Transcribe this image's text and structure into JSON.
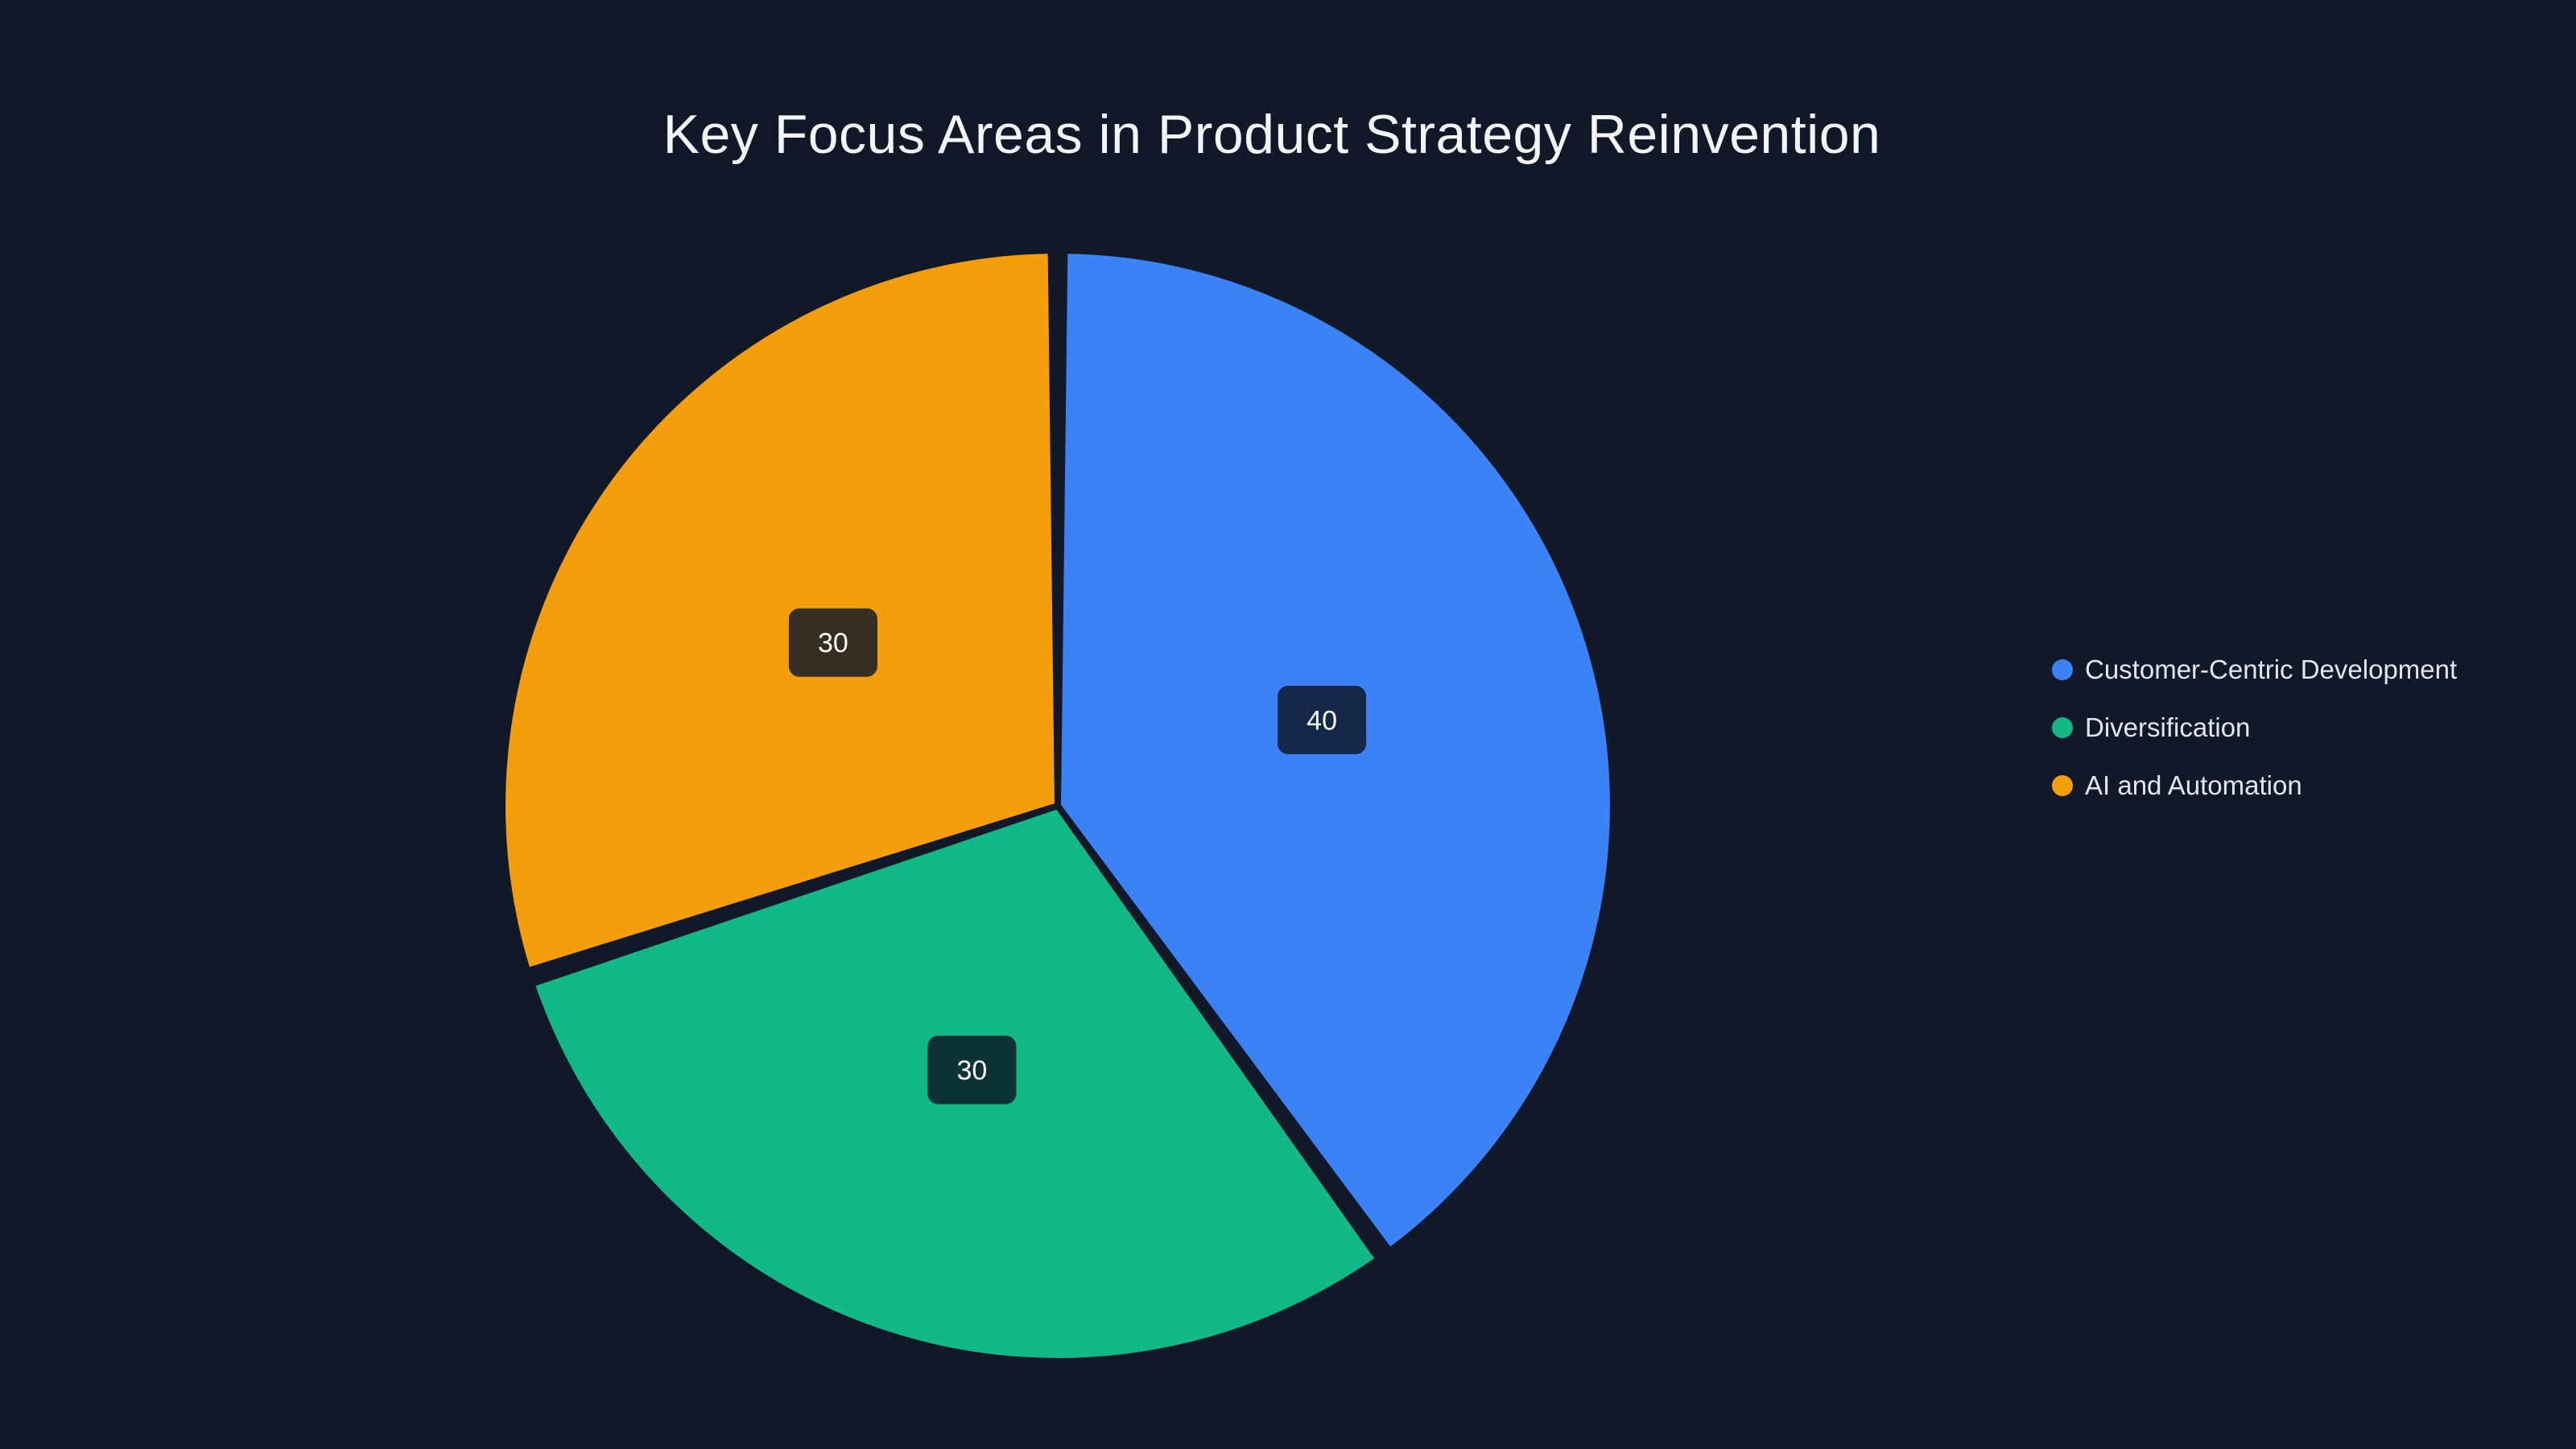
{
  "chart_data": {
    "type": "pie",
    "title": "Key Focus Areas in Product Strategy Reinvention",
    "labels": [
      "Customer-Centric Development",
      "Diversification",
      "AI and Automation"
    ],
    "values": [
      40,
      30,
      30
    ],
    "colors": [
      "#3b82f6",
      "#12b886",
      "#f59e0b"
    ],
    "start_angle_deg": 0,
    "direction": "clockwise",
    "legend_position": "right",
    "background": "#111827",
    "data_label_box_color": "#0c1525",
    "data_label_box_opacity": 0.82,
    "data_label_text_color": "#ffffff",
    "title_color": "#f3f5f8",
    "legend_text_color": "#e3e7ed"
  },
  "legend": {
    "items": [
      {
        "label": "Customer-Centric Development",
        "color": "#3b82f6"
      },
      {
        "label": "Diversification",
        "color": "#12b886"
      },
      {
        "label": "AI and Automation",
        "color": "#f59e0b"
      }
    ]
  }
}
